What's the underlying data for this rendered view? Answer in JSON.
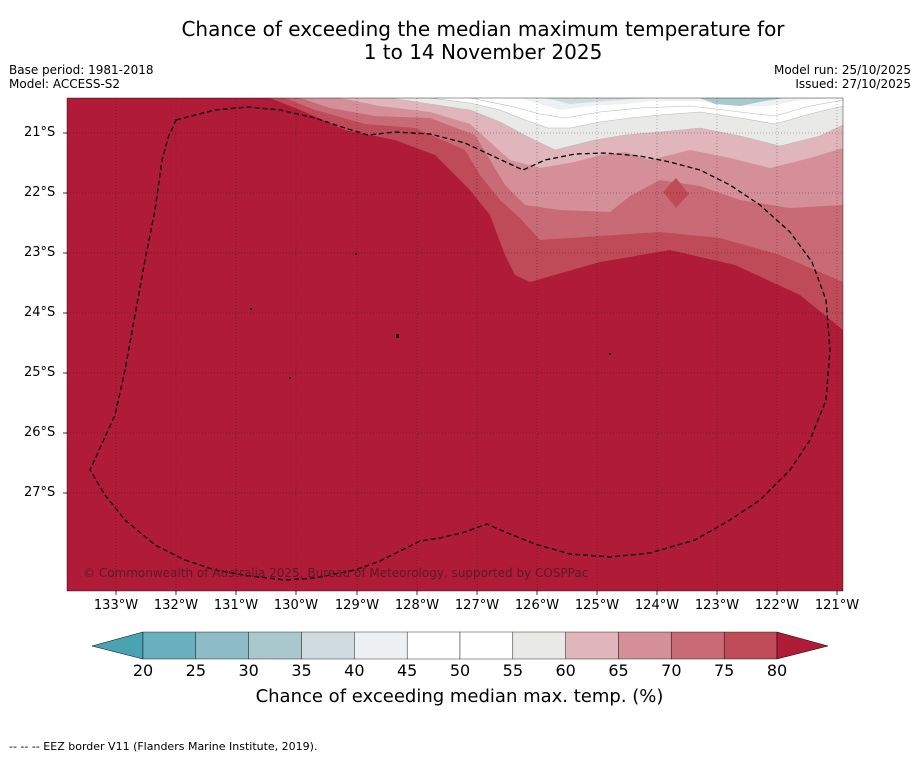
{
  "title": {
    "line1": "Chance of exceeding the median maximum temperature for",
    "line2": "1 to 14 November 2025"
  },
  "meta": {
    "base_period": "Base period: 1981-2018",
    "model": "Model: ACCESS-S2",
    "model_run": "Model run: 25/10/2025",
    "issued": "Issued: 27/10/2025"
  },
  "map": {
    "lat_labels": [
      "21°S",
      "22°S",
      "23°S",
      "24°S",
      "25°S",
      "26°S",
      "27°S"
    ],
    "lon_labels": [
      "133°W",
      "132°W",
      "131°W",
      "130°W",
      "129°W",
      "128°W",
      "127°W",
      "126°W",
      "125°W",
      "124°W",
      "123°W",
      "122°W",
      "121°W"
    ],
    "copyright": "© Commonwealth of Australia 2025, Bureau of Meteorology, supported by COSPPac",
    "colors": {
      "c20": "#4aa3b2",
      "c25": "#6aafbd",
      "c30": "#8dbcc7",
      "c35": "#a9c8ce",
      "c40": "#cfdbde",
      "c45": "#edf1f3",
      "c50": "#ffffff",
      "c55": "#ffffff",
      "c60": "#e9e9e7",
      "c65": "#e0b6bc",
      "c70": "#d58f98",
      "c75": "#c96b76",
      "c80": "#bf4b59",
      "c85": "#b01c38"
    }
  },
  "colorbar": {
    "ticks": [
      "20",
      "25",
      "30",
      "35",
      "40",
      "45",
      "50",
      "55",
      "60",
      "65",
      "70",
      "75",
      "80"
    ],
    "label": "Chance of exceeding median max. temp. (%)"
  },
  "footnote": "-- -- -- EEZ border V11 (Flanders Marine Institute, 2019)."
}
